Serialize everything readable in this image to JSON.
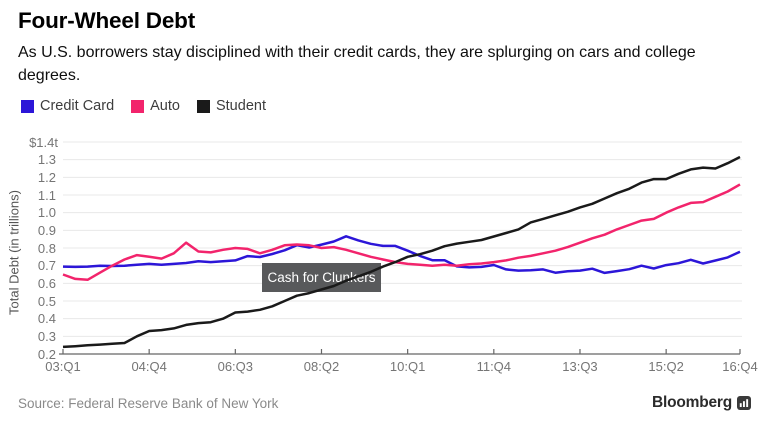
{
  "header": {
    "title": "Four-Wheel Debt",
    "subtitle": "As U.S. borrowers stay disciplined with their credit cards, they are splurging on cars and college degrees."
  },
  "legend": {
    "items": [
      {
        "label": "Credit Card",
        "color": "#2c16d8"
      },
      {
        "label": "Auto",
        "color": "#f2246c"
      },
      {
        "label": "Student",
        "color": "#1a1a1a"
      }
    ]
  },
  "chart_data": {
    "type": "line",
    "title": "Four-Wheel Debt",
    "ylabel": "Total Debt (in trillions)",
    "y_top_label": "$1.4t",
    "ylim": [
      0.2,
      1.4
    ],
    "y_tick_step": 0.1,
    "grid": true,
    "grid_color": "#e8e8e8",
    "axis_color": "#666666",
    "n_points": 56,
    "x_range_note": "quarterly from 03:Q1 to 16:Q4",
    "x_ticks": [
      {
        "label": "03:Q1",
        "index": 0
      },
      {
        "label": "04:Q4",
        "index": 7
      },
      {
        "label": "06:Q3",
        "index": 14
      },
      {
        "label": "08:Q2",
        "index": 21
      },
      {
        "label": "10:Q1",
        "index": 28
      },
      {
        "label": "11:Q4",
        "index": 35
      },
      {
        "label": "13:Q3",
        "index": 42
      },
      {
        "label": "15:Q2",
        "index": 49
      },
      {
        "label": "16:Q4",
        "index": 55
      }
    ],
    "series": [
      {
        "name": "Credit Card",
        "color": "#2c16d8",
        "values": [
          0.695,
          0.693,
          0.695,
          0.7,
          0.698,
          0.7,
          0.705,
          0.71,
          0.705,
          0.71,
          0.715,
          0.725,
          0.72,
          0.725,
          0.73,
          0.754,
          0.749,
          0.766,
          0.787,
          0.816,
          0.803,
          0.819,
          0.837,
          0.866,
          0.843,
          0.824,
          0.812,
          0.812,
          0.785,
          0.755,
          0.731,
          0.731,
          0.696,
          0.69,
          0.693,
          0.704,
          0.679,
          0.672,
          0.674,
          0.679,
          0.66,
          0.668,
          0.672,
          0.683,
          0.659,
          0.669,
          0.68,
          0.7,
          0.684,
          0.703,
          0.714,
          0.733,
          0.712,
          0.729,
          0.747,
          0.779
        ]
      },
      {
        "name": "Auto",
        "color": "#f2246c",
        "values": [
          0.65,
          0.625,
          0.62,
          0.66,
          0.7,
          0.735,
          0.76,
          0.75,
          0.74,
          0.77,
          0.83,
          0.78,
          0.775,
          0.79,
          0.8,
          0.795,
          0.77,
          0.79,
          0.815,
          0.82,
          0.815,
          0.8,
          0.805,
          0.79,
          0.77,
          0.75,
          0.735,
          0.72,
          0.71,
          0.705,
          0.7,
          0.705,
          0.7,
          0.708,
          0.712,
          0.72,
          0.73,
          0.745,
          0.755,
          0.77,
          0.785,
          0.805,
          0.83,
          0.855,
          0.875,
          0.905,
          0.93,
          0.955,
          0.965,
          1.0,
          1.03,
          1.055,
          1.06,
          1.09,
          1.12,
          1.16
        ]
      },
      {
        "name": "Student",
        "color": "#1a1a1a",
        "values": [
          0.24,
          0.244,
          0.249,
          0.253,
          0.258,
          0.262,
          0.3,
          0.33,
          0.335,
          0.345,
          0.365,
          0.375,
          0.38,
          0.4,
          0.435,
          0.44,
          0.45,
          0.47,
          0.5,
          0.53,
          0.545,
          0.565,
          0.585,
          0.615,
          0.64,
          0.665,
          0.695,
          0.72,
          0.75,
          0.765,
          0.785,
          0.81,
          0.825,
          0.835,
          0.845,
          0.865,
          0.885,
          0.905,
          0.945,
          0.965,
          0.985,
          1.005,
          1.03,
          1.05,
          1.08,
          1.11,
          1.135,
          1.17,
          1.19,
          1.19,
          1.22,
          1.245,
          1.255,
          1.25,
          1.28,
          1.315
        ]
      }
    ],
    "annotation": {
      "text": "Cash for Clunkers",
      "bg": "#58595b",
      "text_color": "#ffffff"
    }
  },
  "footer": {
    "source": "Source: Federal Reserve Bank of New York",
    "brand": "Bloomberg"
  }
}
